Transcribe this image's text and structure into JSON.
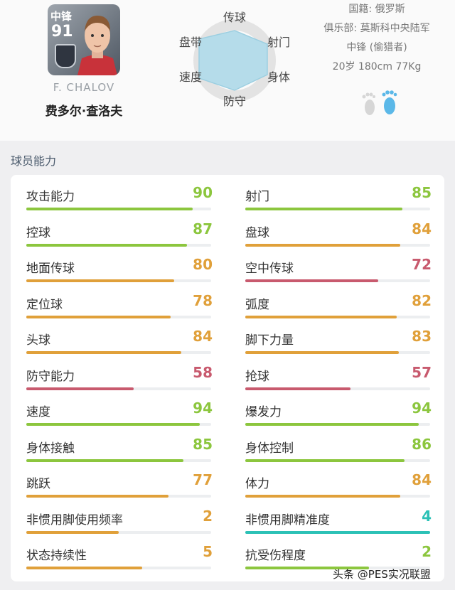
{
  "player": {
    "position_badge": "中锋",
    "overall_badge": "91",
    "name_en": "F. CHALOV",
    "name_cn": "费多尔·查洛夫",
    "nationality": "国籍: 俄罗斯",
    "club": "俱乐部: 莫斯科中央陆军",
    "role": "中锋 (偷猎者)",
    "physical": "20岁 180cm 77Kg"
  },
  "radar": {
    "labels": [
      "传球",
      "射门",
      "身体",
      "防守",
      "速度",
      "盘带"
    ],
    "fill_color": "#b5dcea",
    "stroke_color": "#9ccfe1"
  },
  "section_title": "球员能力",
  "stats_left": [
    {
      "label": "攻击能力",
      "value": "90",
      "color": "#8cc63e",
      "fraction": 0.9
    },
    {
      "label": "控球",
      "value": "87",
      "color": "#8cc63e",
      "fraction": 0.87
    },
    {
      "label": "地面传球",
      "value": "80",
      "color": "#e0a03a",
      "fraction": 0.8
    },
    {
      "label": "定位球",
      "value": "78",
      "color": "#e0a03a",
      "fraction": 0.78
    },
    {
      "label": "头球",
      "value": "84",
      "color": "#e0a03a",
      "fraction": 0.84
    },
    {
      "label": "防守能力",
      "value": "58",
      "color": "#c85a6e",
      "fraction": 0.58
    },
    {
      "label": "速度",
      "value": "94",
      "color": "#8cc63e",
      "fraction": 0.94
    },
    {
      "label": "身体接触",
      "value": "85",
      "color": "#8cc63e",
      "fraction": 0.85
    },
    {
      "label": "跳跃",
      "value": "77",
      "color": "#e0a03a",
      "fraction": 0.77
    },
    {
      "label": "非惯用脚使用频率",
      "value": "2",
      "color": "#e0a03a",
      "fraction": 0.5
    },
    {
      "label": "状态持续性",
      "value": "5",
      "color": "#e0a03a",
      "fraction": 0.625
    }
  ],
  "stats_right": [
    {
      "label": "射门",
      "value": "85",
      "color": "#8cc63e",
      "fraction": 0.85
    },
    {
      "label": "盘球",
      "value": "84",
      "color": "#e0a03a",
      "fraction": 0.84
    },
    {
      "label": "空中传球",
      "value": "72",
      "color": "#c85a6e",
      "fraction": 0.72
    },
    {
      "label": "弧度",
      "value": "82",
      "color": "#e0a03a",
      "fraction": 0.82
    },
    {
      "label": "脚下力量",
      "value": "83",
      "color": "#e0a03a",
      "fraction": 0.83
    },
    {
      "label": "抢球",
      "value": "57",
      "color": "#c85a6e",
      "fraction": 0.57
    },
    {
      "label": "爆发力",
      "value": "94",
      "color": "#8cc63e",
      "fraction": 0.94
    },
    {
      "label": "身体控制",
      "value": "86",
      "color": "#8cc63e",
      "fraction": 0.86
    },
    {
      "label": "体力",
      "value": "84",
      "color": "#e0a03a",
      "fraction": 0.84
    },
    {
      "label": "非惯用脚精准度",
      "value": "4",
      "color": "#2cc1b6",
      "fraction": 1.0
    },
    {
      "label": "抗受伤程度",
      "value": "2",
      "color": "#8cc63e",
      "fraction": 0.67
    }
  ],
  "watermark": "头条 @PES实况联盟"
}
